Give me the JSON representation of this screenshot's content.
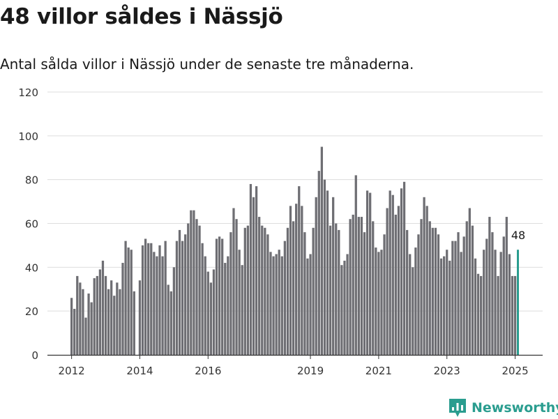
{
  "title": "48 villor såldes i Nässjö",
  "subtitle": "Antal sålda villor i Nässjö under de senaste tre månaderna.",
  "brand": {
    "name": "Newsworthy",
    "color": "#2a9d8f"
  },
  "chart_data": {
    "type": "bar",
    "title": "48 villor såldes i Nässjö",
    "subtitle": "Antal sålda villor i Nässjö under de senaste tre månaderna.",
    "xlabel": "",
    "ylabel": "",
    "ylim": [
      0,
      120
    ],
    "yticks": [
      "0",
      "20",
      "40",
      "60",
      "80",
      "100",
      "120"
    ],
    "xticks": [
      "2012",
      "2014",
      "2016",
      "2019",
      "2021",
      "2023",
      "2025"
    ],
    "grid": true,
    "legend": "none",
    "bar_color": "#6e6e73",
    "highlight_color": "#2a9d8f",
    "highlight_label": "48",
    "series": [
      {
        "values": [
          26,
          21,
          36,
          33,
          30,
          17,
          28,
          24,
          35,
          36,
          39,
          43,
          36,
          30,
          34,
          27,
          33,
          30,
          42,
          52,
          49,
          48,
          29,
          0,
          34,
          50,
          53,
          51,
          51,
          47,
          45,
          50,
          45,
          52,
          32,
          29,
          40,
          52,
          57,
          52,
          55,
          60,
          66,
          66,
          62,
          59,
          51,
          45,
          38,
          33,
          39,
          53,
          54,
          53,
          42,
          45,
          56,
          67,
          62,
          48,
          41,
          58,
          59,
          78,
          72,
          77,
          63,
          59,
          58,
          55,
          47,
          45,
          46,
          48,
          45,
          52,
          58,
          68,
          61,
          69,
          77,
          68,
          56,
          44,
          46,
          58,
          72,
          84,
          95,
          80,
          75,
          59,
          72,
          60,
          57,
          41,
          43,
          46,
          62,
          64,
          82,
          63,
          63,
          56,
          75,
          74,
          61,
          49,
          47,
          48,
          55,
          67,
          75,
          73,
          64,
          68,
          76,
          79,
          57,
          46,
          40,
          49,
          55,
          62,
          72,
          68,
          61,
          58,
          58,
          55,
          44,
          45,
          48,
          43,
          52,
          52,
          56,
          47,
          54,
          61,
          67,
          59,
          44,
          37,
          36,
          48,
          53,
          63,
          56,
          48,
          36,
          47,
          54,
          63,
          46,
          36,
          36,
          48
        ]
      }
    ]
  }
}
